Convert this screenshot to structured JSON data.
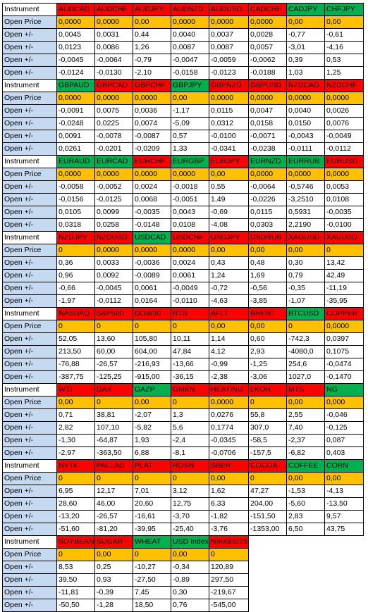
{
  "labels": {
    "instrument": "Instrument",
    "open_price": "Open Price",
    "open_delta": "Open +/-"
  },
  "colors": {
    "red": "#ff0000",
    "green": "#00b050",
    "orange": "#ffc000",
    "label_blue": "#c5d9f1",
    "white": "#ffffff"
  },
  "blocks": [
    {
      "instruments": [
        {
          "name": "AUDCAD",
          "color": "red"
        },
        {
          "name": "AUDCHF",
          "color": "red"
        },
        {
          "name": "AUDJPY",
          "color": "red"
        },
        {
          "name": "AUDNZD",
          "color": "red"
        },
        {
          "name": "AUDUSD",
          "color": "red"
        },
        {
          "name": "CADCHF",
          "color": "red"
        },
        {
          "name": "CADJPY",
          "color": "green"
        },
        {
          "name": "CHFJPY",
          "color": "green"
        }
      ],
      "open_price": [
        "0,0000",
        "0,0000",
        "0,00",
        "0,0000",
        "0,0000",
        "0,0000",
        "0,00",
        "0,00"
      ],
      "rows": [
        [
          "0,0045",
          "0,0031",
          "0,44",
          "0,0040",
          "0,0037",
          "0,0028",
          "-0,77",
          "-0,61"
        ],
        [
          "0,0123",
          "0,0086",
          "1,26",
          "0,0087",
          "0,0087",
          "0,0057",
          "-3,01",
          "-4,16"
        ],
        [
          "-0,0045",
          "-0,0064",
          "-0,79",
          "-0,0047",
          "-0,0059",
          "-0,0062",
          "0,39",
          "0,53"
        ],
        [
          "-0,0124",
          "-0,0130",
          "-2,10",
          "-0,0158",
          "-0,0123",
          "-0,0188",
          "1,03",
          "1,25"
        ]
      ]
    },
    {
      "instruments": [
        {
          "name": "GBPAUD",
          "color": "green"
        },
        {
          "name": "GBPCAD",
          "color": "red"
        },
        {
          "name": "GBPCHF",
          "color": "red"
        },
        {
          "name": "GBPJPY",
          "color": "green"
        },
        {
          "name": "GBPNZD",
          "color": "red"
        },
        {
          "name": "GBPUSD",
          "color": "red"
        },
        {
          "name": "NZDCAD",
          "color": "red"
        },
        {
          "name": "NZDCHF",
          "color": "red"
        }
      ],
      "open_price": [
        "0,0000",
        "0,0000",
        "0,0000",
        "0,00",
        "0,0000",
        "0,0000",
        "0,0000",
        "0,0000"
      ],
      "rows": [
        [
          "-0,0091",
          "0,0075",
          "0,0036",
          "-1,17",
          "0,0115",
          "0,0047",
          "0,0040",
          "0,0026"
        ],
        [
          "-0,0248",
          "0,0225",
          "0,0074",
          "-5,09",
          "0,0312",
          "0,0158",
          "0,0150",
          "0,0076"
        ],
        [
          "0,0091",
          "-0,0078",
          "-0,0087",
          "0,57",
          "-0,0100",
          "-0,0071",
          "-0,0043",
          "-0,0049"
        ],
        [
          "0,0261",
          "-0,0201",
          "-0,0209",
          "1,33",
          "-0,0341",
          "-0,0238",
          "-0,0111",
          "-0,0112"
        ]
      ]
    },
    {
      "instruments": [
        {
          "name": "EURAUD",
          "color": "green"
        },
        {
          "name": "EURCAD",
          "color": "green"
        },
        {
          "name": "EURCHF",
          "color": "red"
        },
        {
          "name": "EURGBP",
          "color": "green"
        },
        {
          "name": "EURJPY",
          "color": "red"
        },
        {
          "name": "EURNZD",
          "color": "green"
        },
        {
          "name": "EURRUB",
          "color": "green"
        },
        {
          "name": "EURUSD",
          "color": "red"
        }
      ],
      "open_price": [
        "0,0000",
        "0,0000",
        "0,0000",
        "0,0000",
        "0,00",
        "0,0000",
        "0,0000",
        "0,0000"
      ],
      "rows": [
        [
          "-0,0058",
          "-0,0052",
          "0,0024",
          "-0,0018",
          "0,55",
          "-0,0064",
          "-0,5746",
          "0,0053"
        ],
        [
          "-0,0156",
          "-0,0125",
          "0,0068",
          "-0,0051",
          "1,49",
          "-0,0226",
          "-3,2510",
          "0,0108"
        ],
        [
          "0,0105",
          "0,0099",
          "-0,0035",
          "0,0043",
          "-0,69",
          "0,0115",
          "0,5931",
          "-0,0035"
        ],
        [
          "0,0318",
          "0,0258",
          "-0,0148",
          "0,0108",
          "-4,08",
          "0,0303",
          "2,2190",
          "-0,0100"
        ]
      ]
    },
    {
      "instruments": [
        {
          "name": "NZDJPY",
          "color": "red"
        },
        {
          "name": "NZDUSD",
          "color": "red"
        },
        {
          "name": "USDCAD",
          "color": "green"
        },
        {
          "name": "USDCHF",
          "color": "red"
        },
        {
          "name": "USDJPY",
          "color": "red"
        },
        {
          "name": "USDRUB",
          "color": "red"
        },
        {
          "name": "XAGUSD",
          "color": "red"
        },
        {
          "name": "XAUUSD",
          "color": "red"
        }
      ],
      "open_price": [
        "0",
        "0,0000",
        "0,0000",
        "0,0000",
        "0,00",
        "0,00",
        "0,00",
        "0"
      ],
      "rows": [
        [
          "0,36",
          "0,0033",
          "-0,0036",
          "0,0024",
          "0,43",
          "0,48",
          "0,30",
          "13,42"
        ],
        [
          "0,96",
          "0,0092",
          "-0,0089",
          "0,0061",
          "1,24",
          "1,69",
          "0,79",
          "42,49"
        ],
        [
          "-0,66",
          "-0,0045",
          "0,0061",
          "-0,0049",
          "-0,72",
          "-0,56",
          "-0,35",
          "-11,19"
        ],
        [
          "-1,97",
          "-0,0112",
          "0,0164",
          "-0,0110",
          "-4,63",
          "-3,85",
          "-1,07",
          "-35,95"
        ]
      ]
    },
    {
      "instruments": [
        {
          "name": "NASDAQ",
          "color": "red"
        },
        {
          "name": "S&P500",
          "color": "red"
        },
        {
          "name": "DOW30",
          "color": "red"
        },
        {
          "name": "RTS",
          "color": "red"
        },
        {
          "name": "AFLT",
          "color": "red"
        },
        {
          "name": "BRENT",
          "color": "red"
        },
        {
          "name": "BTCUSD",
          "color": "green"
        },
        {
          "name": "COPPER",
          "color": "red"
        }
      ],
      "open_price": [
        "0",
        "0",
        "0",
        "0",
        "0,00",
        "0,00",
        "0",
        "0,0000"
      ],
      "rows": [
        [
          "52,05",
          "13,60",
          "105,80",
          "10,11",
          "1,14",
          "0,60",
          "-742,3",
          "0,0397"
        ],
        [
          "213,50",
          "60,00",
          "604,00",
          "47,84",
          "4,12",
          "2,93",
          "-4080,0",
          "0,1075"
        ],
        [
          "-76,88",
          "-26,57",
          "-216,93",
          "-13,66",
          "-0,99",
          "-1,25",
          "254,6",
          "-0,0474"
        ],
        [
          "-387,75",
          "-125,25",
          "-915,00",
          "-36,15",
          "-2,38",
          "-3,06",
          "1027,0",
          "-0,1470"
        ]
      ]
    },
    {
      "instruments": [
        {
          "name": "WTI",
          "color": "red"
        },
        {
          "name": "DAX",
          "color": "red"
        },
        {
          "name": "GAZP",
          "color": "green"
        },
        {
          "name": "GMKN",
          "color": "red"
        },
        {
          "name": "HEATING",
          "color": "red"
        },
        {
          "name": "LKOH",
          "color": "red"
        },
        {
          "name": "MTS",
          "color": "red"
        },
        {
          "name": "NG",
          "color": "green"
        }
      ],
      "open_price": [
        "0,00",
        "0",
        "0,00",
        "0",
        "0,0000",
        "0",
        "0,00",
        "0,000"
      ],
      "rows": [
        [
          "0,71",
          "38,81",
          "-2,07",
          "1,3",
          "0,0276",
          "55,8",
          "2,55",
          "-0,046"
        ],
        [
          "2,82",
          "107,10",
          "-5,82",
          "5,6",
          "0,1774",
          "307,0",
          "7,40",
          "-0,125"
        ],
        [
          "-1,30",
          "-64,87",
          "1,93",
          "-2,4",
          "-0,0345",
          "-58,5",
          "-2,37",
          "0,087"
        ],
        [
          "-2,97",
          "-363,50",
          "6,88",
          "-8,1",
          "-0,0706",
          "-157,5",
          "-6,82",
          "0,403"
        ]
      ]
    },
    {
      "instruments": [
        {
          "name": "NVTK",
          "color": "red"
        },
        {
          "name": "PALLAD",
          "color": "red"
        },
        {
          "name": "PLAT",
          "color": "red"
        },
        {
          "name": "ROSN",
          "color": "red"
        },
        {
          "name": "SBER",
          "color": "red"
        },
        {
          "name": "COCOA",
          "color": "red"
        },
        {
          "name": "COFFEE",
          "color": "green"
        },
        {
          "name": "CORN",
          "color": "green"
        }
      ],
      "open_price": [
        "0",
        "0",
        "0",
        "0",
        "0,00",
        "0",
        "0,00",
        "0,00"
      ],
      "rows": [
        [
          "6,95",
          "12,17",
          "7,01",
          "3,12",
          "1,62",
          "47,27",
          "-1,53",
          "-4,13"
        ],
        [
          "28,60",
          "46,00",
          "20,60",
          "12,75",
          "6,33",
          "204,00",
          "-5,60",
          "-13,50"
        ],
        [
          "-13,20",
          "-26,57",
          "-16,61",
          "-3,70",
          "-1,82",
          "-151,50",
          "2,83",
          "9,57"
        ],
        [
          "-51,60",
          "-81,20",
          "-39,95",
          "-25,40",
          "-3,76",
          "-1353,00",
          "6,50",
          "43,75"
        ]
      ]
    },
    {
      "instruments": [
        {
          "name": "SOYBEAN",
          "color": "red"
        },
        {
          "name": "SUGAR",
          "color": "red"
        },
        {
          "name": "WHEAT",
          "color": "green"
        },
        {
          "name": "USD Index",
          "color": "green"
        },
        {
          "name": "NIKKEI225",
          "color": "red"
        }
      ],
      "open_price": [
        "0",
        "0,00",
        "0",
        "0,00",
        "0"
      ],
      "rows": [
        [
          "8,53",
          "0,25",
          "-10,27",
          "-0,34",
          "120,89"
        ],
        [
          "39,50",
          "0,93",
          "-27,50",
          "-0,89",
          "297,50"
        ],
        [
          "-11,81",
          "-0,39",
          "7,45",
          "0,30",
          "-219,67"
        ],
        [
          "-50,50",
          "-1,28",
          "18,50",
          "0,76",
          "-545,00"
        ]
      ]
    }
  ]
}
